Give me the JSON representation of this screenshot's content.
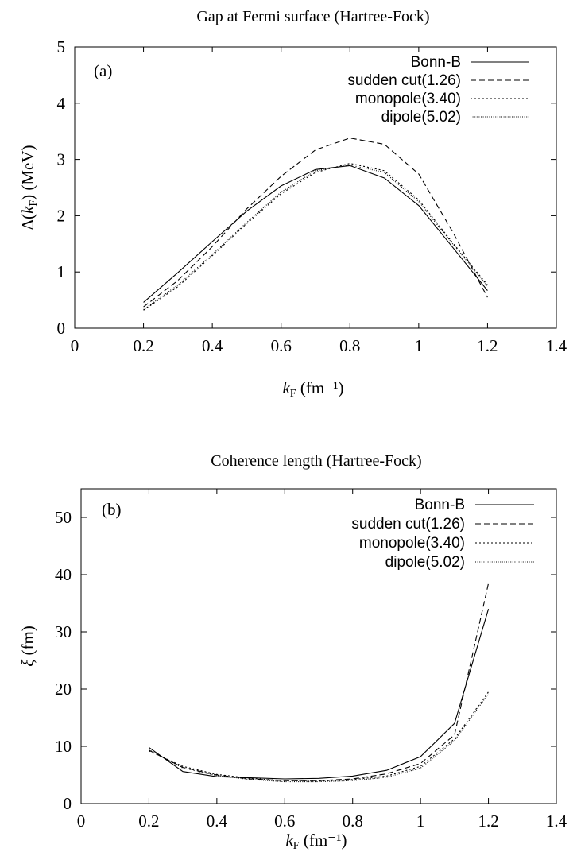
{
  "chart_data": [
    {
      "type": "line",
      "title": "Gap at Fermi surface (Hartree-Fock)",
      "panel_label": "(a)",
      "xlabel": {
        "main": "k",
        "sub": "F",
        "unit": " (fm⁻¹)"
      },
      "ylabel": {
        "pre": "Δ(",
        "main": "k",
        "sub": "F",
        "unit": ") (MeV)"
      },
      "xlim": [
        0,
        1.4
      ],
      "ylim": [
        0,
        5
      ],
      "xticks": [
        0,
        0.2,
        0.4,
        0.6,
        0.8,
        1,
        1.2,
        1.4
      ],
      "xtick_labels": [
        "0",
        "0.2",
        "0.4",
        "0.6",
        "0.8",
        "1",
        "1.2",
        "1.4"
      ],
      "yticks": [
        0,
        1,
        2,
        3,
        4,
        5
      ],
      "ytick_labels": [
        "0",
        "1",
        "2",
        "3",
        "4",
        "5"
      ],
      "grid": false,
      "legend_position": "top-right",
      "x": [
        0.2,
        0.3,
        0.4,
        0.5,
        0.6,
        0.7,
        0.8,
        0.9,
        1.0,
        1.1,
        1.2
      ],
      "series": [
        {
          "name": "Bonn-B",
          "dash": "solid",
          "values": [
            0.46,
            0.99,
            1.54,
            2.08,
            2.53,
            2.82,
            2.89,
            2.67,
            2.18,
            1.43,
            0.67
          ]
        },
        {
          "name": "sudden cut(1.26)",
          "dash": "dashed",
          "values": [
            0.38,
            0.85,
            1.45,
            2.12,
            2.7,
            3.17,
            3.38,
            3.27,
            2.74,
            1.7,
            0.55
          ]
        },
        {
          "name": "monopole(3.40)",
          "dash": "dotted",
          "values": [
            0.32,
            0.74,
            1.29,
            1.86,
            2.39,
            2.77,
            2.93,
            2.8,
            2.28,
            1.51,
            0.77
          ]
        },
        {
          "name": "dipole(5.02)",
          "dash": "densedot",
          "values": [
            0.33,
            0.77,
            1.31,
            1.88,
            2.42,
            2.8,
            2.9,
            2.77,
            2.25,
            1.49,
            0.75
          ]
        }
      ]
    },
    {
      "type": "line",
      "title": "Coherence length (Hartree-Fock)",
      "panel_label": "(b)",
      "xlabel": {
        "main": "k",
        "sub": "F",
        "unit": " (fm⁻¹)"
      },
      "ylabel": {
        "pre": "",
        "main": "ξ",
        "sub": "",
        "unit": " (fm)"
      },
      "xlim": [
        0,
        1.4
      ],
      "ylim": [
        0,
        55
      ],
      "xticks": [
        0,
        0.2,
        0.4,
        0.6,
        0.8,
        1,
        1.2,
        1.4
      ],
      "xtick_labels": [
        "0",
        "0.2",
        "0.4",
        "0.6",
        "0.8",
        "1",
        "1.2",
        "1.4"
      ],
      "yticks": [
        0,
        10,
        20,
        30,
        40,
        50
      ],
      "ytick_labels": [
        "0",
        "10",
        "20",
        "30",
        "40",
        "50"
      ],
      "grid": false,
      "legend_position": "top-right",
      "x": [
        0.2,
        0.3,
        0.4,
        0.5,
        0.6,
        0.7,
        0.8,
        0.9,
        1.0,
        1.1,
        1.2
      ],
      "series": [
        {
          "name": "Bonn-B",
          "dash": "solid",
          "values": [
            9.8,
            5.6,
            4.7,
            4.5,
            4.3,
            4.4,
            4.8,
            5.8,
            8.2,
            14.0,
            34.0
          ]
        },
        {
          "name": "sudden cut(1.26)",
          "dash": "dashed",
          "values": [
            9.3,
            6.3,
            5.0,
            4.3,
            4.0,
            4.0,
            4.3,
            5.2,
            7.0,
            12.0,
            38.5
          ]
        },
        {
          "name": "monopole(3.40)",
          "dash": "dotted",
          "values": [
            9.2,
            6.5,
            5.1,
            4.4,
            4.0,
            3.9,
            4.2,
            4.8,
            6.5,
            11.3,
            19.5
          ]
        },
        {
          "name": "dipole(5.02)",
          "dash": "densedot",
          "values": [
            9.4,
            6.2,
            4.9,
            4.2,
            3.8,
            3.8,
            4.0,
            4.6,
            6.2,
            11.0,
            19.2
          ]
        }
      ]
    }
  ]
}
